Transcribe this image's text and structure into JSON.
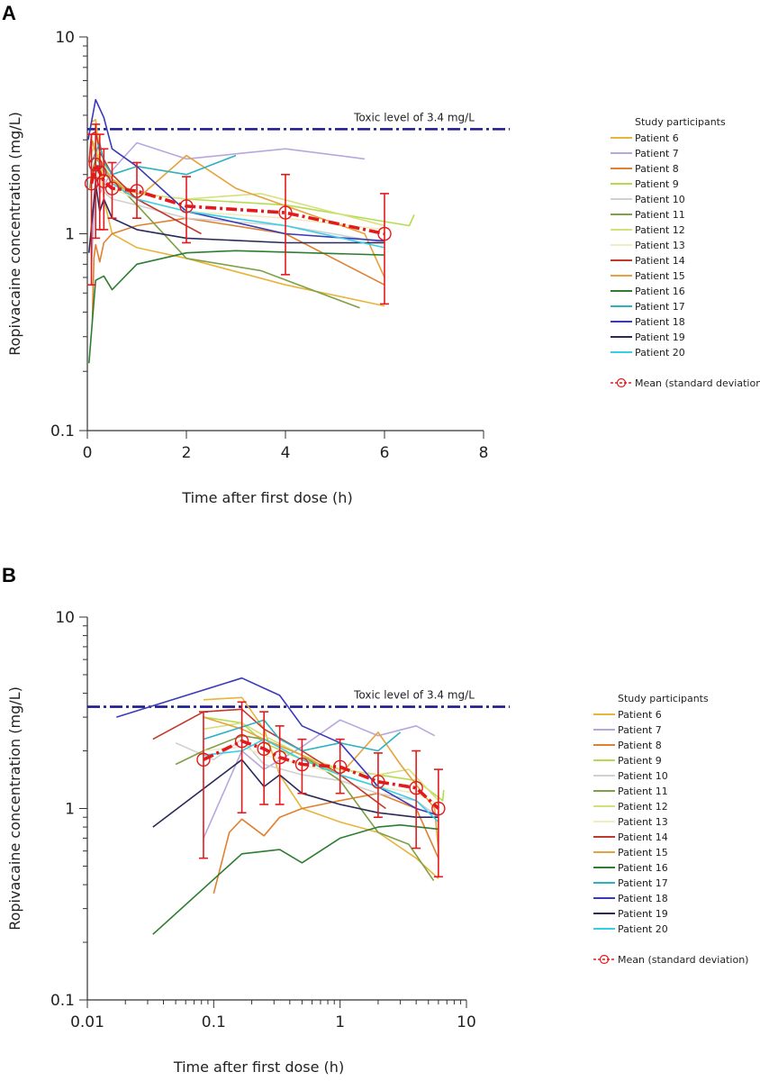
{
  "chart_data": [
    {
      "type": "line",
      "panel": "A",
      "xlabel": "Time after first dose (h)",
      "ylabel": "Ropivacaine concentration (mg/L)",
      "xscale": "linear",
      "yscale": "log",
      "xlim": [
        0,
        8
      ],
      "ylim": [
        0.1,
        10
      ],
      "xticks": [
        0,
        2,
        4,
        6,
        8
      ],
      "xtick_labels": [
        "0",
        "2",
        "4",
        "6",
        "8"
      ],
      "yticks": [
        0.1,
        1,
        10
      ],
      "ytick_labels": [
        "0.1",
        "1",
        "10"
      ],
      "toxic_level": {
        "value": 3.4,
        "label": "Toxic level of 3.4 mg/L",
        "color": "#1a1a8c"
      },
      "legend_title": "Study participants",
      "legend_position": "right",
      "mean_label": "Mean (standard deviation)",
      "mean_color": "#e31a1c",
      "series": [
        {
          "name": "Patient 6",
          "color": "#e8b43a",
          "x": [
            0.083,
            0.167,
            0.25,
            0.333,
            0.5,
            1,
            2,
            4,
            6
          ],
          "y": [
            3.7,
            3.8,
            2.6,
            1.5,
            1.0,
            0.85,
            0.75,
            0.55,
            0.43
          ]
        },
        {
          "name": "Patient 7",
          "color": "#b7a7de",
          "x": [
            0.083,
            0.167,
            0.25,
            0.5,
            1,
            2,
            4,
            5.6
          ],
          "y": [
            0.7,
            2.0,
            1.6,
            2.1,
            2.9,
            2.4,
            2.7,
            2.4
          ]
        },
        {
          "name": "Patient 8",
          "color": "#e08030",
          "x": [
            0.1,
            0.133,
            0.167,
            0.25,
            0.333,
            0.5,
            1,
            2,
            4,
            6
          ],
          "y": [
            0.36,
            0.75,
            0.88,
            0.72,
            0.9,
            1.0,
            1.1,
            1.2,
            1.0,
            0.55
          ]
        },
        {
          "name": "Patient 9",
          "color": "#b5dc50",
          "x": [
            0.083,
            0.167,
            0.25,
            0.5,
            1,
            2,
            4,
            6.5,
            6.6
          ],
          "y": [
            3.0,
            2.8,
            2.2,
            1.8,
            1.6,
            1.5,
            1.4,
            1.1,
            1.25
          ]
        },
        {
          "name": "Patient 10",
          "color": "#d0d0d0",
          "x": [
            0.05,
            0.1,
            0.167,
            0.25,
            0.5,
            1,
            2,
            4,
            6
          ],
          "y": [
            2.2,
            1.8,
            2.3,
            1.7,
            1.5,
            1.4,
            1.2,
            1.1,
            0.9
          ]
        },
        {
          "name": "Patient 11",
          "color": "#7fa045",
          "x": [
            0.05,
            0.083,
            0.167,
            0.25,
            0.5,
            1,
            2,
            3.5,
            5.5
          ],
          "y": [
            1.7,
            2.0,
            2.4,
            2.3,
            1.9,
            1.4,
            0.75,
            0.65,
            0.42
          ]
        },
        {
          "name": "Patient 12",
          "color": "#d6e07a",
          "x": [
            0.083,
            0.167,
            0.25,
            0.5,
            1,
            2,
            3.5,
            6
          ],
          "y": [
            2.6,
            2.8,
            2.4,
            1.9,
            1.6,
            1.5,
            1.6,
            1.1
          ]
        },
        {
          "name": "Patient 13",
          "color": "#f0ecc0",
          "x": [
            0.083,
            0.167,
            0.25,
            0.5,
            1,
            2,
            4,
            6
          ],
          "y": [
            2.0,
            2.1,
            1.9,
            1.7,
            1.5,
            1.3,
            1.2,
            1.05
          ]
        },
        {
          "name": "Patient 14",
          "color": "#c0392b",
          "x": [
            0.033,
            0.083,
            0.167,
            0.25,
            0.5,
            1,
            2.3
          ],
          "y": [
            2.3,
            3.2,
            3.3,
            2.6,
            2.0,
            1.5,
            1.0
          ]
        },
        {
          "name": "Patient 15",
          "color": "#e6a23c",
          "x": [
            0.083,
            0.167,
            0.25,
            0.5,
            1,
            2,
            3,
            5.6,
            6
          ],
          "y": [
            3.0,
            2.6,
            2.3,
            1.9,
            1.5,
            2.5,
            1.7,
            1.0,
            0.6
          ]
        },
        {
          "name": "Patient 16",
          "color": "#2e7d32",
          "x": [
            0.033,
            0.167,
            0.333,
            0.5,
            1,
            2,
            3,
            6
          ],
          "y": [
            0.22,
            0.58,
            0.61,
            0.52,
            0.7,
            0.8,
            0.82,
            0.78
          ]
        },
        {
          "name": "Patient 17",
          "color": "#2bb3c0",
          "x": [
            0.083,
            0.25,
            0.333,
            0.5,
            1,
            2,
            3
          ],
          "y": [
            2.3,
            2.9,
            2.3,
            2.0,
            2.2,
            2.0,
            2.5
          ]
        },
        {
          "name": "Patient 18",
          "color": "#3a3ab8",
          "x": [
            0.017,
            0.167,
            0.333,
            0.5,
            1,
            2,
            4,
            6
          ],
          "y": [
            3.0,
            4.8,
            3.9,
            2.7,
            2.2,
            1.3,
            1.0,
            0.92
          ]
        },
        {
          "name": "Patient 19",
          "color": "#2a2a5a",
          "x": [
            0.033,
            0.167,
            0.25,
            0.333,
            0.5,
            1,
            2,
            4,
            6
          ],
          "y": [
            0.8,
            1.8,
            1.3,
            1.5,
            1.2,
            1.05,
            0.95,
            0.9,
            0.9
          ]
        },
        {
          "name": "Patient 20",
          "color": "#35d0e8",
          "x": [
            0.083,
            0.167,
            0.25,
            0.5,
            1,
            2,
            4,
            6
          ],
          "y": [
            1.9,
            2.0,
            2.3,
            1.8,
            1.5,
            1.3,
            1.1,
            0.85
          ]
        }
      ],
      "mean": {
        "x": [
          0.083,
          0.167,
          0.25,
          0.333,
          0.5,
          1,
          2,
          4,
          6
        ],
        "y": [
          1.8,
          2.25,
          2.05,
          1.85,
          1.7,
          1.65,
          1.38,
          1.28,
          1.0
        ],
        "sd_upper": [
          3.2,
          3.6,
          3.2,
          2.7,
          2.3,
          2.3,
          1.95,
          2.0,
          1.6
        ],
        "sd_lower": [
          0.55,
          0.95,
          1.05,
          1.05,
          1.2,
          1.2,
          0.9,
          0.62,
          0.44
        ]
      }
    },
    {
      "type": "line",
      "panel": "B",
      "xlabel": "Time after first dose (h)",
      "ylabel": "Ropivacaine concentration (mg/L)",
      "xscale": "log",
      "yscale": "log",
      "xlim": [
        0.01,
        10
      ],
      "ylim": [
        0.1,
        10
      ],
      "xticks": [
        0.01,
        0.1,
        1,
        10
      ],
      "xtick_labels": [
        "0.01",
        "0.1",
        "1",
        "10"
      ],
      "yticks": [
        0.1,
        1,
        10
      ],
      "ytick_labels": [
        "0.1",
        "1",
        "10"
      ],
      "toxic_level": {
        "value": 3.4,
        "label": "Toxic level of 3.4 mg/L",
        "color": "#1a1a8c"
      },
      "legend_title": "Study participants",
      "legend_position": "right",
      "mean_label": "Mean (standard deviation)",
      "mean_color": "#e31a1c",
      "series_ref": "same patient series as panel A, plotted on log-time axis"
    }
  ],
  "panels": {
    "a_label": "A",
    "b_label": "B"
  }
}
